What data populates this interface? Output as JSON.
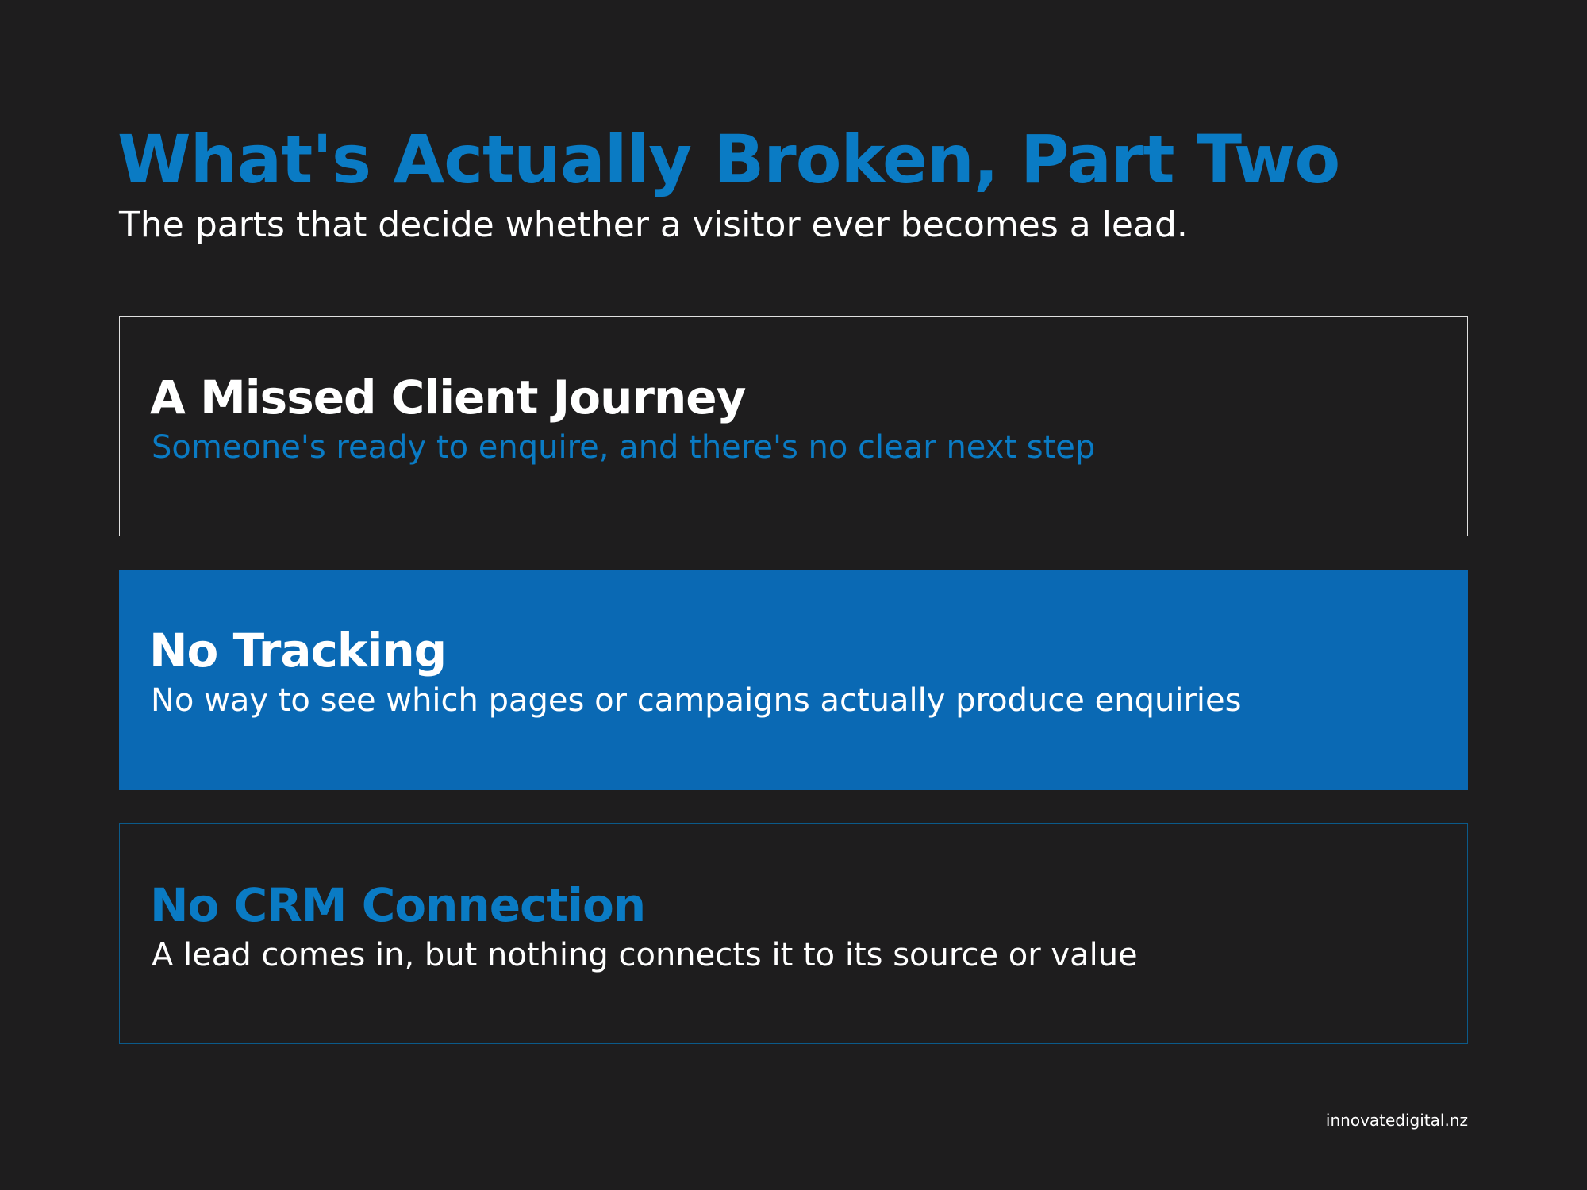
{
  "header": {
    "title": "What's Actually Broken, Part Two",
    "subtitle": "The parts that decide whether a visitor ever becomes a lead."
  },
  "cards": [
    {
      "title": "A Missed Client Journey",
      "text": "Someone's ready to enquire, and there's no clear next step"
    },
    {
      "title": "No Tracking",
      "text": "No way to see which pages or campaigns actually produce enquiries"
    },
    {
      "title": "No CRM Connection",
      "text": "A lead comes in, but nothing connects it to its source or value"
    }
  ],
  "footer": "innovatedigital.nz"
}
